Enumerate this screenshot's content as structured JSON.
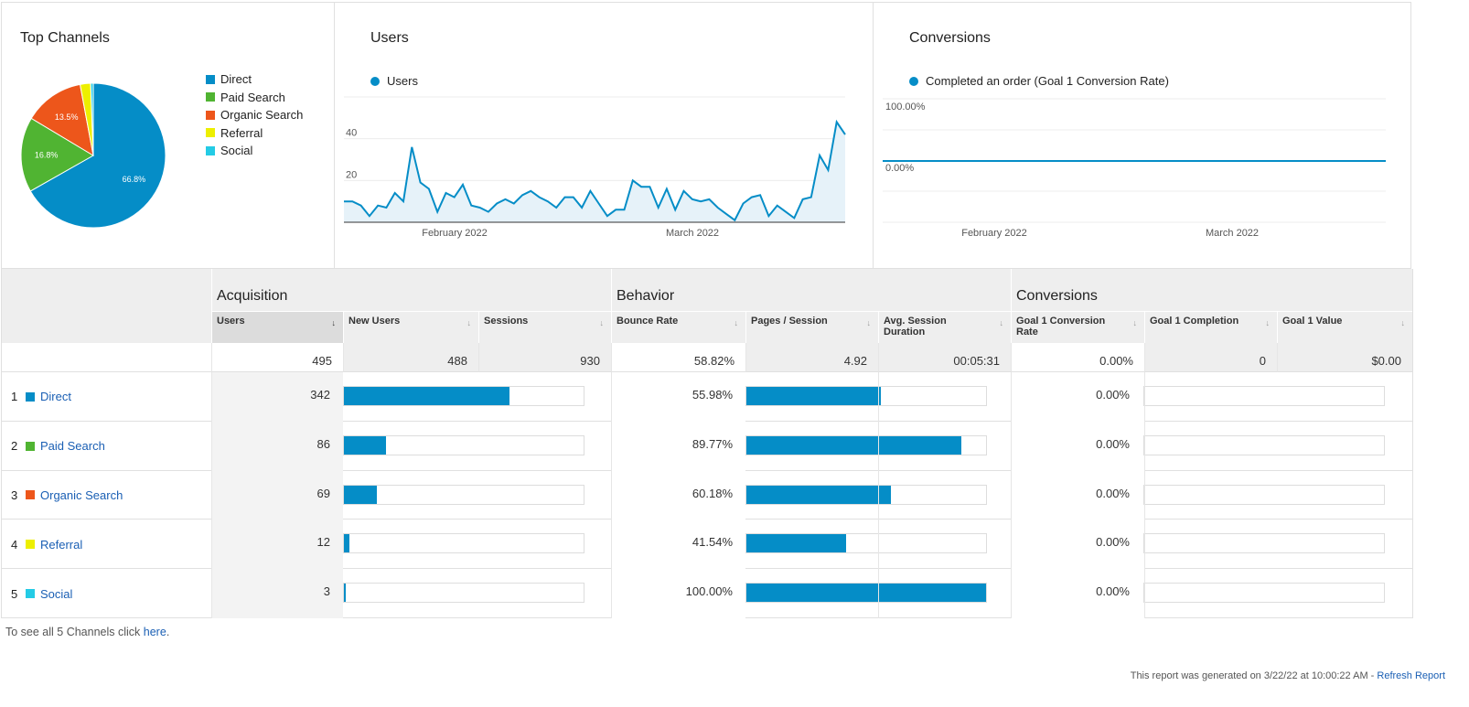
{
  "top_channels": {
    "title": "Top Channels",
    "legend": [
      {
        "label": "Direct",
        "color": "#058dc7"
      },
      {
        "label": "Paid Search",
        "color": "#50b432"
      },
      {
        "label": "Organic Search",
        "color": "#ed561b"
      },
      {
        "label": "Referral",
        "color": "#edef00"
      },
      {
        "label": "Social",
        "color": "#24cbe5"
      }
    ]
  },
  "users_panel": {
    "title": "Users",
    "legend": "Users"
  },
  "conversions_panel": {
    "title": "Conversions",
    "legend": "Completed an order (Goal 1 Conversion Rate)"
  },
  "chart_data": [
    {
      "type": "pie",
      "title": "Top Channels",
      "categories": [
        "Direct",
        "Paid Search",
        "Organic Search",
        "Referral",
        "Social"
      ],
      "values": [
        342,
        86,
        69,
        12,
        3
      ],
      "labels": [
        "66.8%",
        "16.8%",
        "13.5%",
        "",
        ""
      ],
      "colors": [
        "#058dc7",
        "#50b432",
        "#ed561b",
        "#edef00",
        "#24cbe5"
      ]
    },
    {
      "type": "area",
      "title": "Users",
      "series": [
        {
          "name": "Users",
          "values": [
            10,
            10,
            8,
            3,
            8,
            7,
            14,
            10,
            36,
            19,
            16,
            5,
            14,
            12,
            18,
            8,
            7,
            5,
            9,
            11,
            9,
            13,
            15,
            12,
            10,
            7,
            12,
            12,
            7,
            15,
            9,
            3,
            6,
            6,
            20,
            17,
            17,
            7,
            16,
            6,
            15,
            11,
            10,
            11,
            7,
            4,
            1,
            9,
            12,
            13,
            3,
            8,
            5,
            2,
            11,
            12,
            32,
            25,
            48,
            42
          ]
        }
      ],
      "xticks": [
        "February 2022",
        "March 2022"
      ],
      "yticks": [
        "20",
        "40",
        "60"
      ],
      "ylim": [
        0,
        60
      ],
      "grid": true
    },
    {
      "type": "line",
      "title": "Conversions",
      "series": [
        {
          "name": "Completed an order (Goal 1 Conversion Rate)",
          "values": [
            0,
            0,
            0,
            0,
            0,
            0,
            0,
            0,
            0,
            0,
            0,
            0,
            0,
            0,
            0,
            0,
            0,
            0,
            0,
            0,
            0,
            0,
            0,
            0,
            0,
            0,
            0,
            0,
            0,
            0,
            0,
            0,
            0,
            0,
            0,
            0,
            0,
            0,
            0,
            0,
            0,
            0,
            0,
            0,
            0,
            0,
            0,
            0,
            0,
            0,
            0,
            0,
            0,
            0,
            0,
            0,
            0,
            0,
            0,
            0
          ]
        }
      ],
      "xticks": [
        "February 2022",
        "March 2022"
      ],
      "yticks": [
        "100.00%",
        "0.00%"
      ],
      "grid": true
    }
  ],
  "table": {
    "groups": [
      "Acquisition",
      "Behavior",
      "Conversions"
    ],
    "headers": [
      "Users",
      "New Users",
      "Sessions",
      "Bounce Rate",
      "Pages / Session",
      "Avg. Session Duration",
      "Goal 1 Conversion Rate",
      "Goal 1 Completion",
      "Goal 1 Value"
    ],
    "totals": [
      "495",
      "488",
      "930",
      "58.82%",
      "4.92",
      "00:05:31",
      "0.00%",
      "0",
      "$0.00"
    ],
    "rows": [
      {
        "num": "1",
        "label": "Direct",
        "color": "#058dc7",
        "users": "342",
        "users_share": 0.69,
        "bounce": "55.98%",
        "bounce_share": 0.5598,
        "conv": "0.00%"
      },
      {
        "num": "2",
        "label": "Paid Search",
        "color": "#50b432",
        "users": "86",
        "users_share": 0.174,
        "bounce": "89.77%",
        "bounce_share": 0.8977,
        "conv": "0.00%"
      },
      {
        "num": "3",
        "label": "Organic Search",
        "color": "#ed561b",
        "users": "69",
        "users_share": 0.139,
        "bounce": "60.18%",
        "bounce_share": 0.6018,
        "conv": "0.00%"
      },
      {
        "num": "4",
        "label": "Referral",
        "color": "#edef00",
        "users": "12",
        "users_share": 0.024,
        "bounce": "41.54%",
        "bounce_share": 0.4154,
        "conv": "0.00%"
      },
      {
        "num": "5",
        "label": "Social",
        "color": "#24cbe5",
        "users": "3",
        "users_share": 0.006,
        "bounce": "100.00%",
        "bounce_share": 1.0,
        "conv": "0.00%"
      }
    ]
  },
  "footer": {
    "prefix": "To see all 5 Channels click",
    "link": "here",
    "suffix": "."
  },
  "generated": {
    "text": "This report was generated on 3/22/22 at 10:00:22 AM -",
    "link": "Refresh Report"
  }
}
